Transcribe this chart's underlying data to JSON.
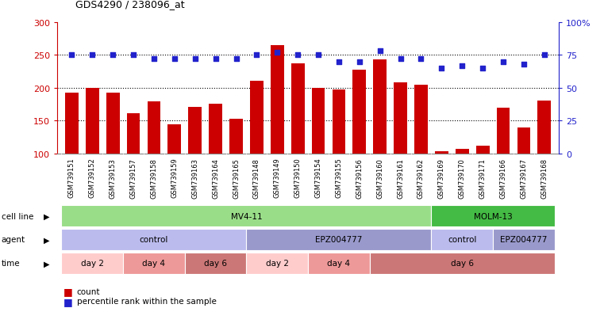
{
  "title": "GDS4290 / 238096_at",
  "samples": [
    "GSM739151",
    "GSM739152",
    "GSM739153",
    "GSM739157",
    "GSM739158",
    "GSM739159",
    "GSM739163",
    "GSM739164",
    "GSM739165",
    "GSM739148",
    "GSM739149",
    "GSM739150",
    "GSM739154",
    "GSM739155",
    "GSM739156",
    "GSM739160",
    "GSM739161",
    "GSM739162",
    "GSM739169",
    "GSM739170",
    "GSM739171",
    "GSM739166",
    "GSM739167",
    "GSM739168"
  ],
  "counts": [
    193,
    200,
    193,
    161,
    179,
    144,
    171,
    176,
    153,
    211,
    265,
    237,
    200,
    197,
    228,
    243,
    208,
    205,
    103,
    107,
    112,
    170,
    139,
    181
  ],
  "percentiles": [
    75,
    75,
    75,
    75,
    72,
    72,
    72,
    72,
    72,
    75,
    77,
    75,
    75,
    70,
    70,
    78,
    72,
    72,
    65,
    67,
    65,
    70,
    68,
    75
  ],
  "bar_color": "#cc0000",
  "dot_color": "#2222cc",
  "ylim_left": [
    100,
    300
  ],
  "ylim_right": [
    0,
    100
  ],
  "yticks_left": [
    100,
    150,
    200,
    250,
    300
  ],
  "yticks_right": [
    0,
    25,
    50,
    75,
    100
  ],
  "grid_values": [
    150,
    200,
    250
  ],
  "cell_line_data": [
    {
      "label": "MV4-11",
      "start": 0,
      "end": 18,
      "color": "#99dd88"
    },
    {
      "label": "MOLM-13",
      "start": 18,
      "end": 24,
      "color": "#44bb44"
    }
  ],
  "agent_data": [
    {
      "label": "control",
      "start": 0,
      "end": 9,
      "color": "#bbbbee"
    },
    {
      "label": "EPZ004777",
      "start": 9,
      "end": 18,
      "color": "#9999cc"
    },
    {
      "label": "control",
      "start": 18,
      "end": 21,
      "color": "#bbbbee"
    },
    {
      "label": "EPZ004777",
      "start": 21,
      "end": 24,
      "color": "#9999cc"
    }
  ],
  "time_data": [
    {
      "label": "day 2",
      "start": 0,
      "end": 3,
      "color": "#ffcccc"
    },
    {
      "label": "day 4",
      "start": 3,
      "end": 6,
      "color": "#ee9999"
    },
    {
      "label": "day 6",
      "start": 6,
      "end": 9,
      "color": "#cc7777"
    },
    {
      "label": "day 2",
      "start": 9,
      "end": 12,
      "color": "#ffcccc"
    },
    {
      "label": "day 4",
      "start": 12,
      "end": 15,
      "color": "#ee9999"
    },
    {
      "label": "day 6",
      "start": 15,
      "end": 24,
      "color": "#cc7777"
    }
  ],
  "row_labels": [
    "cell line",
    "agent",
    "time"
  ],
  "legend_count_color": "#cc0000",
  "legend_dot_color": "#2222cc",
  "background_color": "#ffffff",
  "tick_color_left": "#cc0000",
  "tick_color_right": "#2222cc",
  "xticklabel_bg": "#dddddd"
}
